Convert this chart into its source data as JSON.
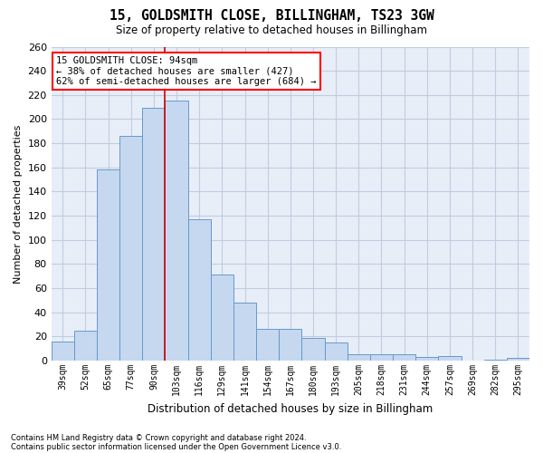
{
  "title1": "15, GOLDSMITH CLOSE, BILLINGHAM, TS23 3GW",
  "title2": "Size of property relative to detached houses in Billingham",
  "xlabel": "Distribution of detached houses by size in Billingham",
  "ylabel": "Number of detached properties",
  "categories": [
    "39sqm",
    "52sqm",
    "65sqm",
    "77sqm",
    "90sqm",
    "103sqm",
    "116sqm",
    "129sqm",
    "141sqm",
    "154sqm",
    "167sqm",
    "180sqm",
    "193sqm",
    "205sqm",
    "218sqm",
    "231sqm",
    "244sqm",
    "257sqm",
    "269sqm",
    "282sqm",
    "295sqm"
  ],
  "values": [
    16,
    25,
    158,
    186,
    209,
    215,
    117,
    71,
    48,
    26,
    26,
    19,
    15,
    5,
    5,
    5,
    3,
    4,
    0,
    1,
    2
  ],
  "bar_color": "#c5d8f0",
  "bar_edge_color": "#6699cc",
  "red_line_x": 4.5,
  "annotation_title": "15 GOLDSMITH CLOSE: 94sqm",
  "annotation_line1": "← 38% of detached houses are smaller (427)",
  "annotation_line2": "62% of semi-detached houses are larger (684) →",
  "footer1": "Contains HM Land Registry data © Crown copyright and database right 2024.",
  "footer2": "Contains public sector information licensed under the Open Government Licence v3.0.",
  "ylim": [
    0,
    260
  ],
  "background_color": "#ffffff",
  "plot_bg_color": "#e8eef8",
  "grid_color": "#c0cce0"
}
